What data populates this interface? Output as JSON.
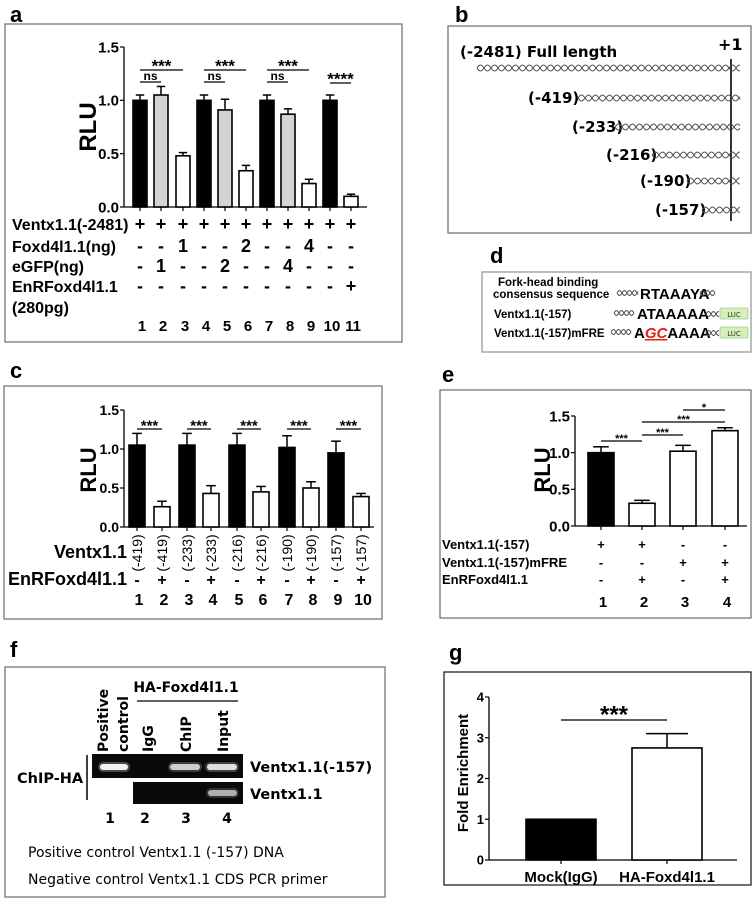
{
  "panel_labels": {
    "a": "a",
    "b": "b",
    "c": "c",
    "d": "d",
    "e": "e",
    "f": "f",
    "g": "g"
  },
  "panel_b": {
    "plus_one": "+1",
    "constructs": [
      "(-2481) Full length",
      "(-419)",
      "(-233)",
      "(-216)",
      "(-190)",
      "(-157)"
    ]
  },
  "panel_d": {
    "row1_label_line1": "Fork-head binding",
    "row1_label_line2": "consensus sequence",
    "row1_seq": "RTAAAYA",
    "row2_label": "Ventx1.1(-157)",
    "row2_seq": "ATAAAAA",
    "row3_label": "Ventx1.1(-157)mFRE",
    "row3_seq_pre": "A",
    "row3_seq_mut": "GC",
    "row3_seq_post": "AAAA",
    "reporter": "LUC",
    "mutation_color": "#e0201b",
    "reporter_color": "#d6f0b8"
  },
  "panel_f": {
    "group_label": "HA-Foxd4l1.1",
    "lane_labels": [
      "Positive",
      "control",
      "IgG",
      "ChIP",
      "Input"
    ],
    "row_group": "ChIP-HA",
    "band_labels": [
      "Ventx1.1(-157)",
      "Ventx1.1"
    ],
    "lane_numbers": [
      "1",
      "2",
      "3",
      "4"
    ],
    "caption1": "Positive control Ventx1.1 (-157) DNA",
    "caption2": "Negative control Ventx1.1 CDS PCR primer"
  },
  "chart_data": [
    {
      "panel": "a",
      "type": "bar",
      "ylabel": "RLU",
      "ylim": [
        0,
        1.5
      ],
      "yticks": [
        "0.0",
        "0.5",
        "1.0",
        "1.5"
      ],
      "categories": [
        "1",
        "2",
        "3",
        "4",
        "5",
        "6",
        "7",
        "8",
        "9",
        "10",
        "11"
      ],
      "values": [
        1.0,
        1.05,
        0.48,
        1.0,
        0.91,
        0.34,
        1.0,
        0.87,
        0.22,
        1.0,
        0.1
      ],
      "errors": [
        0.05,
        0.08,
        0.03,
        0.05,
        0.1,
        0.05,
        0.05,
        0.05,
        0.04,
        0.05,
        0.02
      ],
      "bar_colors": [
        "#000000",
        "#d4d4d4",
        "#ffffff",
        "#000000",
        "#d4d4d4",
        "#ffffff",
        "#000000",
        "#d4d4d4",
        "#ffffff",
        "#000000",
        "#ffffff"
      ],
      "significance": [
        {
          "from": 1,
          "to": 3,
          "label": "***"
        },
        {
          "from": 1,
          "to": 2,
          "label": "ns"
        },
        {
          "from": 4,
          "to": 6,
          "label": "***"
        },
        {
          "from": 4,
          "to": 5,
          "label": "ns"
        },
        {
          "from": 7,
          "to": 9,
          "label": "***"
        },
        {
          "from": 7,
          "to": 8,
          "label": "ns"
        },
        {
          "from": 10,
          "to": 11,
          "label": "****"
        }
      ],
      "conditions": [
        {
          "label": "Ventx1.1(-2481)",
          "values": [
            "+",
            "+",
            "+",
            "+",
            "+",
            "+",
            "+",
            "+",
            "+",
            "+",
            "+"
          ]
        },
        {
          "label": "Foxd4l1.1(ng)",
          "values": [
            "-",
            "-",
            "1",
            "-",
            "-",
            "2",
            "-",
            "-",
            "4",
            "-",
            "-"
          ]
        },
        {
          "label": "eGFP(ng)",
          "values": [
            "-",
            "1",
            "-",
            "-",
            "2",
            "-",
            "-",
            "4",
            "-",
            "-",
            "-"
          ]
        },
        {
          "label": "EnRFoxd4l1.1",
          "sublabel": "(280pg)",
          "values": [
            "-",
            "-",
            "-",
            "-",
            "-",
            "-",
            "-",
            "-",
            "-",
            "-",
            "+"
          ]
        }
      ]
    },
    {
      "panel": "c",
      "type": "bar",
      "ylabel": "RLU",
      "ylim": [
        0,
        1.5
      ],
      "yticks": [
        "0.0",
        "0.5",
        "1.0",
        "1.5"
      ],
      "categories": [
        "1",
        "2",
        "3",
        "4",
        "5",
        "6",
        "7",
        "8",
        "9",
        "10"
      ],
      "values": [
        1.05,
        0.26,
        1.05,
        0.43,
        1.05,
        0.45,
        1.02,
        0.5,
        0.95,
        0.39
      ],
      "errors": [
        0.15,
        0.07,
        0.15,
        0.1,
        0.15,
        0.07,
        0.15,
        0.08,
        0.15,
        0.04
      ],
      "bar_colors": [
        "#000000",
        "#ffffff",
        "#000000",
        "#ffffff",
        "#000000",
        "#ffffff",
        "#000000",
        "#ffffff",
        "#000000",
        "#ffffff"
      ],
      "significance": [
        {
          "from": 1,
          "to": 2,
          "label": "***"
        },
        {
          "from": 3,
          "to": 4,
          "label": "***"
        },
        {
          "from": 5,
          "to": 6,
          "label": "***"
        },
        {
          "from": 7,
          "to": 8,
          "label": "***"
        },
        {
          "from": 9,
          "to": 10,
          "label": "***"
        }
      ],
      "conditions": [
        {
          "label": "Ventx1.1",
          "rotated": true,
          "values": [
            "(-419)",
            "(-419)",
            "(-233)",
            "(-233)",
            "(-216)",
            "(-216)",
            "(-190)",
            "(-190)",
            "(-157)",
            "(-157)"
          ]
        },
        {
          "label": "EnRFoxd4l1.1",
          "values": [
            "-",
            "+",
            "-",
            "+",
            "-",
            "+",
            "-",
            "+",
            "-",
            "+"
          ]
        }
      ]
    },
    {
      "panel": "e",
      "type": "bar",
      "ylabel": "RLU",
      "ylim": [
        0,
        1.5
      ],
      "yticks": [
        "0.0",
        "0.5",
        "1.0",
        "1.5"
      ],
      "categories": [
        "1",
        "2",
        "3",
        "4"
      ],
      "values": [
        1.0,
        0.31,
        1.02,
        1.3
      ],
      "errors": [
        0.08,
        0.04,
        0.08,
        0.04
      ],
      "bar_colors": [
        "#000000",
        "#ffffff",
        "#ffffff",
        "#ffffff"
      ],
      "significance": [
        {
          "from": 1,
          "to": 2,
          "label": "***"
        },
        {
          "from": 2,
          "to": 3,
          "label": "***"
        },
        {
          "from": 2,
          "to": 4,
          "label": "***"
        },
        {
          "from": 3,
          "to": 4,
          "label": "*"
        }
      ],
      "conditions": [
        {
          "label": "Ventx1.1(-157)",
          "values": [
            "+",
            "+",
            "-",
            "-"
          ]
        },
        {
          "label": "Ventx1.1(-157)mFRE",
          "values": [
            "-",
            "-",
            "+",
            "+"
          ]
        },
        {
          "label": "EnRFoxd4l1.1",
          "values": [
            "-",
            "+",
            "-",
            "+"
          ]
        }
      ]
    },
    {
      "panel": "g",
      "type": "bar",
      "ylabel": "Fold Enrichment",
      "ylim": [
        0,
        4
      ],
      "yticks": [
        "0",
        "1",
        "2",
        "3",
        "4"
      ],
      "categories": [
        "Mock(IgG)",
        "HA-Foxd4l1.1"
      ],
      "values": [
        1.0,
        2.75
      ],
      "errors": [
        0,
        0.35
      ],
      "bar_colors": [
        "#000000",
        "#ffffff"
      ],
      "significance": [
        {
          "from": 1,
          "to": 2,
          "label": "***"
        }
      ]
    }
  ]
}
